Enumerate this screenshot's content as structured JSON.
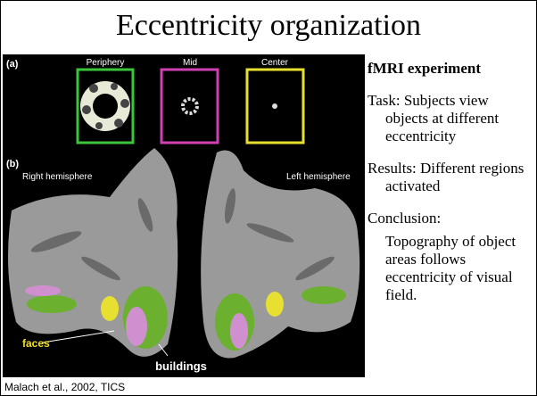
{
  "header": {
    "title": "Eccentricity organization"
  },
  "figure": {
    "panel_a": "(a)",
    "panel_b": "(b)",
    "periphery": "Periphery",
    "mid": "Mid",
    "center": "Center",
    "right_hemisphere": "Right hemisphere",
    "left_hemisphere": "Left hemisphere",
    "faces": "faces",
    "buildings": "buildings"
  },
  "notes": {
    "heading": "fMRI experiment",
    "task": "Task: Subjects view objects at different eccentricity",
    "results": "Results: Different regions activated",
    "conclusion": "Conclusion:",
    "conclusion_text": "Topography of object areas follows eccentricity of visual field."
  },
  "citation": "Malach et al., 2002, TICS"
}
